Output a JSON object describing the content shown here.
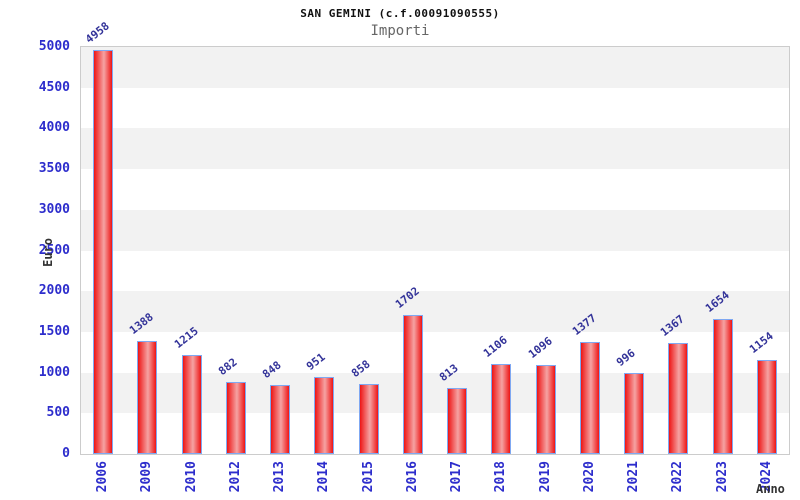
{
  "title": "SAN GEMINI (c.f.00091090555)",
  "subtitle": "Importi",
  "chart_data": {
    "type": "bar",
    "categories": [
      "2006",
      "2009",
      "2010",
      "2012",
      "2013",
      "2014",
      "2015",
      "2016",
      "2017",
      "2018",
      "2019",
      "2020",
      "2021",
      "2022",
      "2023",
      "2024"
    ],
    "values": [
      4958,
      1388,
      1215,
      882,
      848,
      951,
      858,
      1702,
      813,
      1106,
      1096,
      1377,
      996,
      1367,
      1654,
      1154
    ],
    "title": "SAN GEMINI (c.f.00091090555)",
    "subtitle": "Importi",
    "xlabel": "Anno",
    "ylabel": "Euro",
    "ylim": [
      0,
      5000
    ],
    "ytick_step": 500,
    "yticks": [
      0,
      500,
      1000,
      1500,
      2000,
      2500,
      3000,
      3500,
      4000,
      4500,
      5000
    ],
    "grid": "alternating-bands",
    "legend_position": "none",
    "bar_labels_shown": true
  },
  "colors": {
    "axis_label_blue": "#2d2dcc",
    "value_label_navy": "#333399",
    "axis_title_dark": "#333333",
    "band_gray": "#f2f2f2",
    "plot_border": "#cccccc",
    "bar_edge_red": "#ee1515",
    "bar_center_pink": "#f5a3a3",
    "bar_border_blue": "#7fa8f2",
    "subtitle_gray": "#666666",
    "title_black": "#111111",
    "background": "#ffffff"
  }
}
